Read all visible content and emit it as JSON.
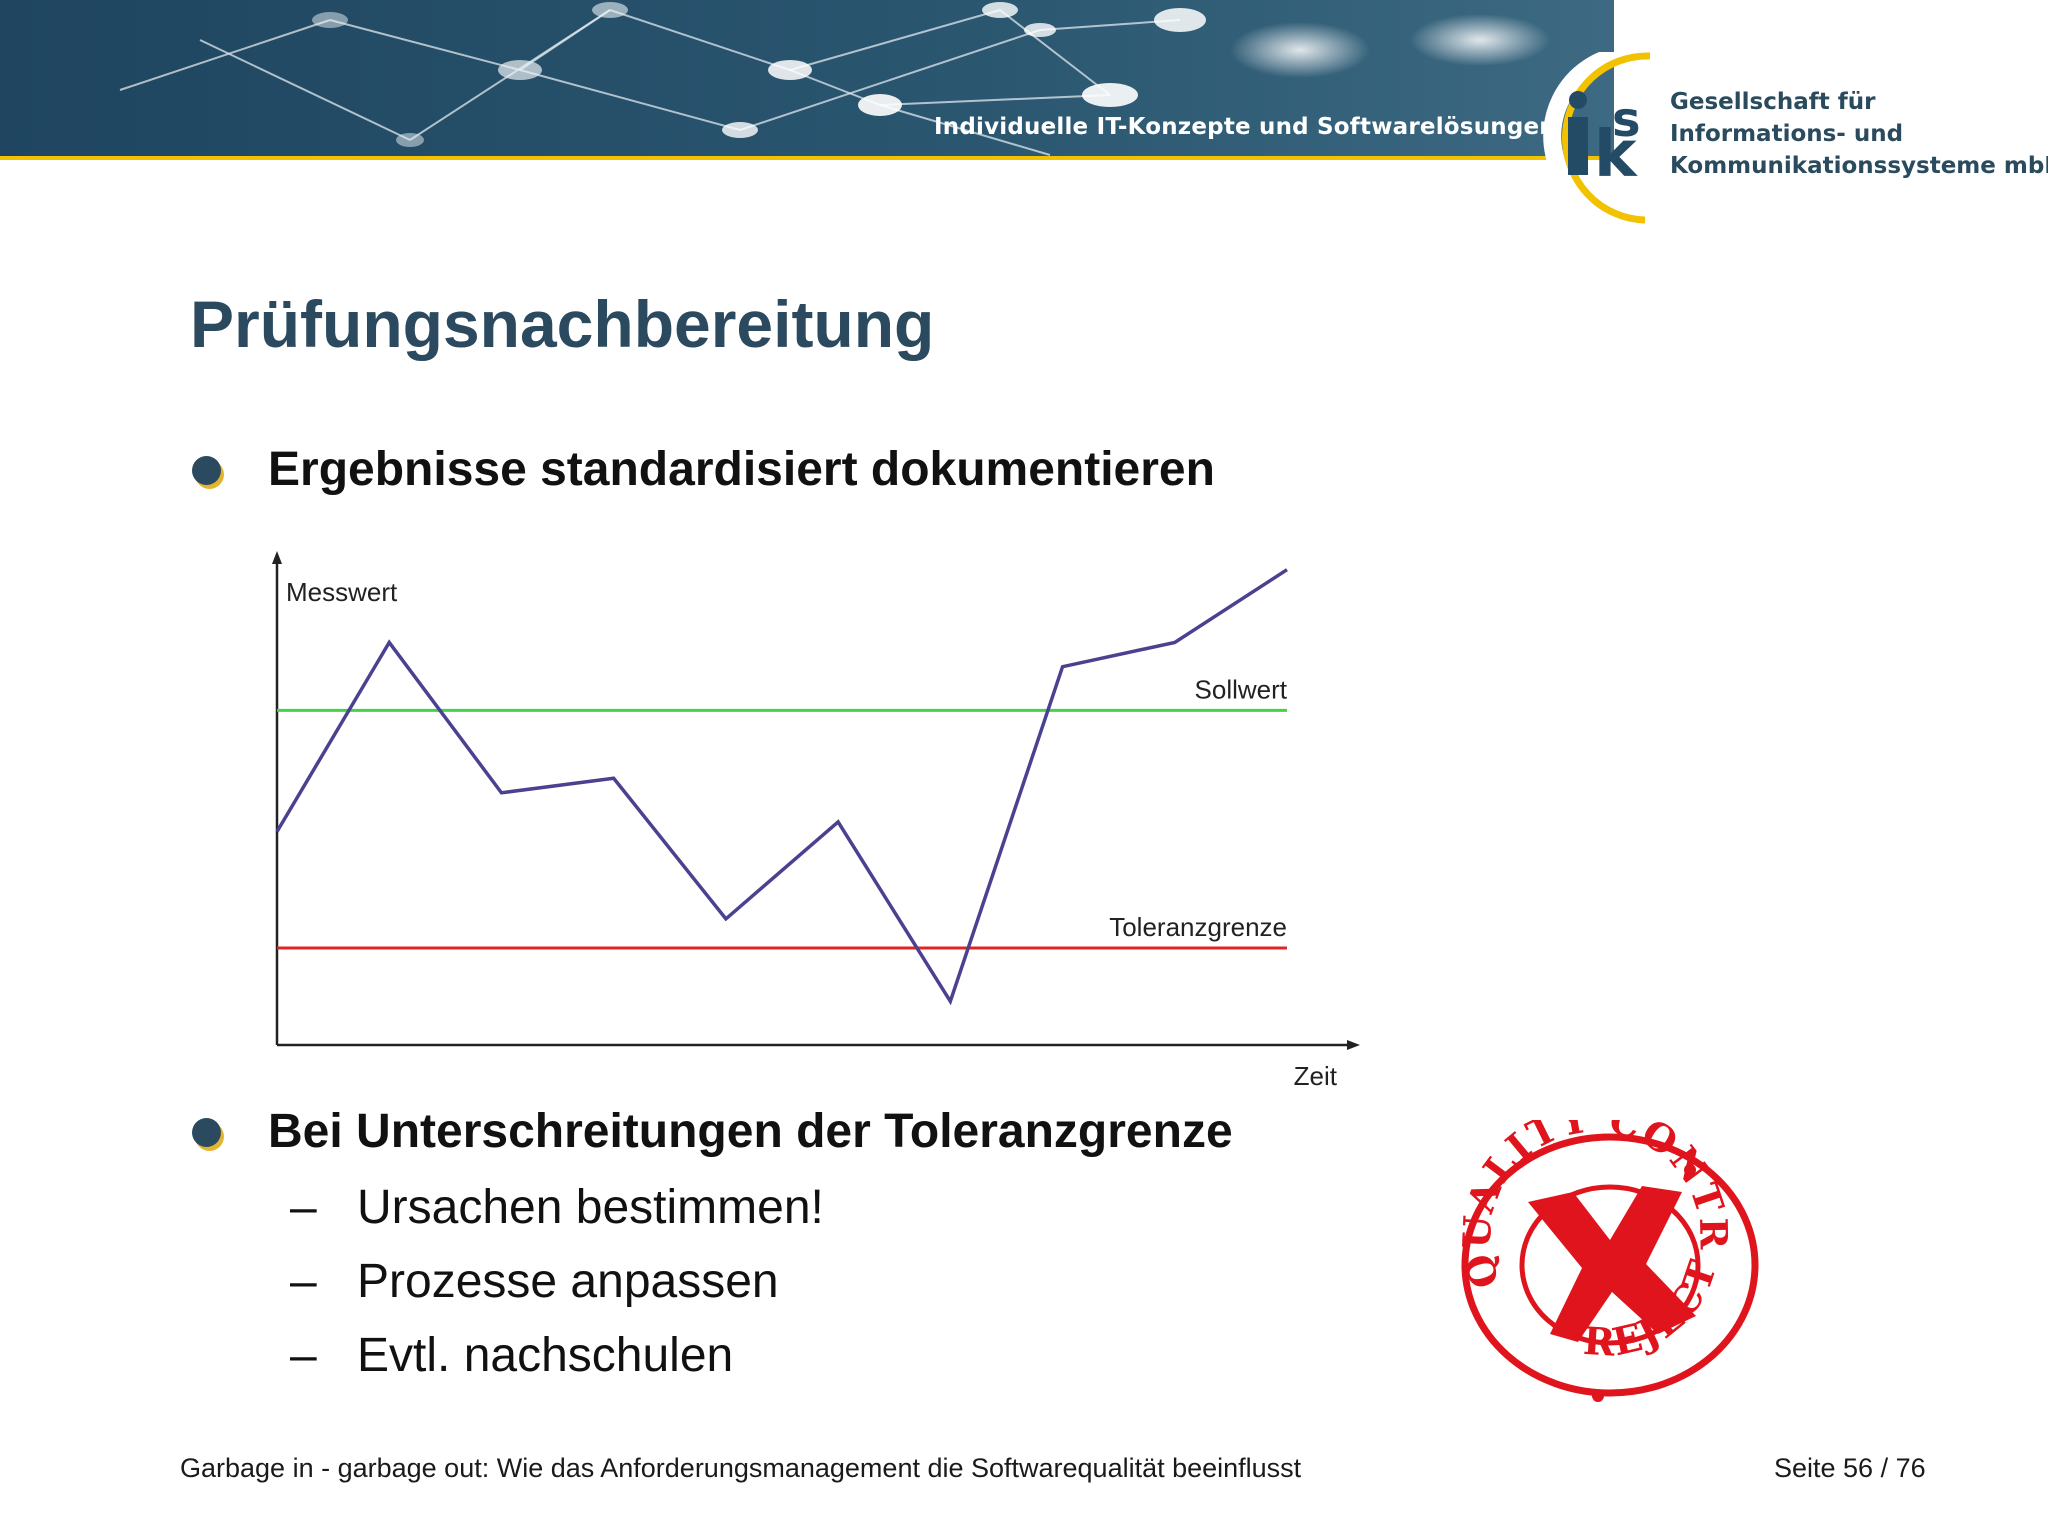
{
  "header": {
    "tagline": "Individuelle IT-Konzepte und Softwarelösungen",
    "logo_text": "iks",
    "company_lines": [
      "Gesellschaft für",
      "Informations- und",
      "Kommunikationssysteme mbH"
    ],
    "banner_color": "#244a62",
    "accent_color": "#f2c200"
  },
  "slide": {
    "title": "Prüfungsnachbereitung",
    "bullets": [
      {
        "text": "Ergebnisse standardisiert dokumentieren"
      },
      {
        "text": "Bei Unterschreitungen der Toleranzgrenze",
        "subitems": [
          "Ursachen bestimmen!",
          "Prozesse anpassen",
          "Evtl. nachschulen"
        ]
      }
    ],
    "dash": "–"
  },
  "stamp": {
    "top_text": "QUALITY CONTROL",
    "bottom_text": "REJECTED",
    "color": "#e0141c"
  },
  "footer": {
    "text": "Garbage in - garbage out: Wie das Anforderungsmanagement die Softwarequalität beeinflusst",
    "page": "Seite 56 / 76"
  },
  "chart_data": {
    "type": "line",
    "xlabel": "Zeit",
    "ylabel": "Messwert",
    "xlim": [
      0,
      9
    ],
    "ylim": [
      0,
      100
    ],
    "grid": false,
    "series": [
      {
        "values": [
          {
            "x": 0,
            "y": 44
          },
          {
            "x": 1,
            "y": 83
          },
          {
            "x": 2,
            "y": 52
          },
          {
            "x": 3,
            "y": 55
          },
          {
            "x": 4,
            "y": 26
          },
          {
            "x": 5,
            "y": 46
          },
          {
            "x": 6,
            "y": 9
          },
          {
            "x": 7,
            "y": 78
          },
          {
            "x": 8,
            "y": 83
          },
          {
            "x": 9,
            "y": 98
          }
        ],
        "color": "#4a4290"
      }
    ],
    "reference_lines": [
      {
        "name": "Sollwert",
        "y": 69,
        "color": "#46d246"
      },
      {
        "name": "Toleranzgrenze",
        "y": 20,
        "color": "#e02424"
      }
    ]
  }
}
